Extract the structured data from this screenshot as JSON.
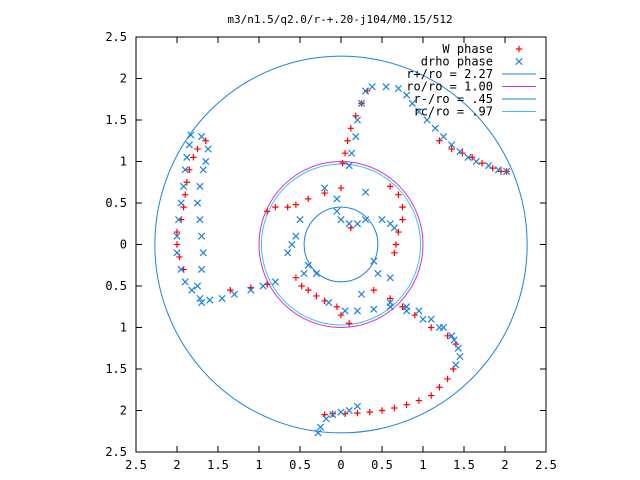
{
  "chart_data": {
    "type": "scatter",
    "title": "m3/n1.5/q2.0/r-+.20-j104/M0.15/512",
    "xlim": [
      -2.5,
      2.5
    ],
    "ylim": [
      -2.5,
      2.5
    ],
    "x_ticks": [
      -2.5,
      -2,
      -1.5,
      -1,
      -0.5,
      0,
      0.5,
      1,
      1.5,
      2,
      2.5
    ],
    "y_ticks": [
      2.5,
      2,
      1.5,
      1,
      0.5,
      0,
      -0.5,
      -1,
      -1.5,
      -2,
      -2.5
    ],
    "x_tick_labels": [
      "2.5",
      "2",
      "1.5",
      "1",
      "0.5",
      "0",
      "0.5",
      "1",
      "1.5",
      "2",
      "2.5"
    ],
    "y_tick_labels": [
      "2.5",
      "2",
      "1.5",
      "1",
      "0.5",
      "0",
      "0.5",
      "1",
      "1.5",
      "2",
      "2.5"
    ],
    "grid": false,
    "legend_position": "top-right",
    "series": [
      {
        "name": "W phase",
        "marker": "+",
        "color": "#ff0000",
        "points": [
          [
            0.02,
            0.98
          ],
          [
            0.05,
            1.1
          ],
          [
            0.08,
            1.25
          ],
          [
            0.12,
            1.4
          ],
          [
            0.18,
            1.55
          ],
          [
            0.25,
            1.7
          ],
          [
            0.32,
            1.85
          ],
          [
            0.12,
            0.2
          ],
          [
            0.6,
            0.7
          ],
          [
            0.7,
            0.6
          ],
          [
            0.75,
            0.45
          ],
          [
            0.75,
            0.3
          ],
          [
            0.7,
            0.15
          ],
          [
            0.67,
            0.0
          ],
          [
            0.65,
            -0.1
          ],
          [
            -0.9,
            0.4
          ],
          [
            -0.8,
            0.45
          ],
          [
            -0.65,
            0.45
          ],
          [
            -0.55,
            0.48
          ],
          [
            -0.4,
            0.55
          ],
          [
            -0.2,
            0.62
          ],
          [
            0.0,
            0.68
          ],
          [
            -0.55,
            -0.4
          ],
          [
            -0.48,
            -0.5
          ],
          [
            -0.4,
            -0.55
          ],
          [
            -0.3,
            -0.62
          ],
          [
            -0.2,
            -0.68
          ],
          [
            -0.05,
            -0.75
          ],
          [
            0.0,
            -0.85
          ],
          [
            0.1,
            -0.95
          ],
          [
            0.4,
            -0.55
          ],
          [
            0.6,
            -0.65
          ],
          [
            0.75,
            -0.75
          ],
          [
            0.9,
            -0.85
          ],
          [
            1.1,
            -1.0
          ],
          [
            1.3,
            -1.1
          ],
          [
            1.4,
            -1.2
          ],
          [
            -1.35,
            -0.55
          ],
          [
            -1.1,
            -0.52
          ],
          [
            -0.9,
            -0.48
          ],
          [
            1.37,
            -1.5
          ],
          [
            1.3,
            -1.62
          ],
          [
            1.2,
            -1.72
          ],
          [
            1.1,
            -1.82
          ],
          [
            0.95,
            -1.88
          ],
          [
            0.8,
            -1.93
          ],
          [
            0.65,
            -1.97
          ],
          [
            0.5,
            -2.0
          ],
          [
            0.35,
            -2.02
          ],
          [
            0.2,
            -2.03
          ],
          [
            0.05,
            -2.04
          ],
          [
            -0.1,
            -2.04
          ],
          [
            -0.2,
            -2.05
          ],
          [
            -1.92,
            -0.3
          ],
          [
            -1.97,
            -0.15
          ],
          [
            -2.0,
            0.0
          ],
          [
            -2.0,
            0.15
          ],
          [
            -1.95,
            0.3
          ],
          [
            -1.92,
            0.45
          ],
          [
            -1.9,
            0.6
          ],
          [
            -1.88,
            0.75
          ],
          [
            -1.85,
            0.9
          ],
          [
            -1.8,
            1.05
          ],
          [
            -1.75,
            1.15
          ],
          [
            -1.65,
            1.25
          ],
          [
            1.2,
            1.25
          ],
          [
            1.35,
            1.15
          ],
          [
            1.48,
            1.1
          ],
          [
            1.6,
            1.05
          ],
          [
            1.72,
            0.98
          ],
          [
            1.85,
            0.92
          ],
          [
            1.95,
            0.88
          ],
          [
            2.02,
            0.88
          ]
        ]
      },
      {
        "name": "drho phase",
        "marker": "x",
        "color": "#1c82e0",
        "points": [
          [
            0.1,
            0.95
          ],
          [
            0.13,
            1.1
          ],
          [
            0.18,
            1.3
          ],
          [
            0.2,
            1.5
          ],
          [
            0.25,
            1.7
          ],
          [
            0.3,
            1.85
          ],
          [
            0.38,
            1.9
          ],
          [
            0.55,
            1.9
          ],
          [
            0.7,
            1.88
          ],
          [
            0.8,
            1.8
          ],
          [
            0.87,
            1.7
          ],
          [
            0.95,
            1.6
          ],
          [
            1.05,
            1.5
          ],
          [
            1.15,
            1.4
          ],
          [
            1.25,
            1.3
          ],
          [
            1.35,
            1.2
          ],
          [
            1.45,
            1.12
          ],
          [
            1.55,
            1.05
          ],
          [
            1.65,
            1.0
          ],
          [
            1.8,
            0.95
          ],
          [
            1.92,
            0.9
          ],
          [
            2.02,
            0.88
          ],
          [
            -0.05,
            0.55
          ],
          [
            -0.05,
            0.4
          ],
          [
            0.0,
            0.3
          ],
          [
            0.1,
            0.25
          ],
          [
            0.2,
            0.25
          ],
          [
            0.3,
            0.3
          ],
          [
            0.5,
            0.3
          ],
          [
            0.6,
            0.25
          ],
          [
            0.65,
            0.2
          ],
          [
            -0.5,
            0.3
          ],
          [
            -0.55,
            0.1
          ],
          [
            -0.6,
            0.0
          ],
          [
            -0.65,
            -0.1
          ],
          [
            -0.4,
            -0.25
          ],
          [
            -0.45,
            -0.35
          ],
          [
            -0.3,
            -0.35
          ],
          [
            0.4,
            -0.2
          ],
          [
            0.45,
            -0.35
          ],
          [
            0.6,
            -0.4
          ],
          [
            -0.15,
            -0.7
          ],
          [
            0.05,
            -0.8
          ],
          [
            0.2,
            -0.8
          ],
          [
            0.4,
            -0.78
          ],
          [
            0.6,
            -0.75
          ],
          [
            0.8,
            -0.8
          ],
          [
            1.0,
            -0.9
          ],
          [
            1.2,
            -1.0
          ],
          [
            1.35,
            -1.1
          ],
          [
            1.43,
            -1.25
          ],
          [
            1.45,
            -1.35
          ],
          [
            1.4,
            -1.45
          ],
          [
            0.6,
            -0.7
          ],
          [
            0.8,
            -0.75
          ],
          [
            0.95,
            -0.8
          ],
          [
            1.1,
            -0.9
          ],
          [
            1.25,
            -1.0
          ],
          [
            1.38,
            -1.15
          ],
          [
            0.2,
            -1.95
          ],
          [
            0.1,
            -2.0
          ],
          [
            0.0,
            -2.02
          ],
          [
            -0.1,
            -2.05
          ],
          [
            -0.18,
            -2.1
          ],
          [
            -0.25,
            -2.2
          ],
          [
            -0.28,
            -2.27
          ],
          [
            0.25,
            -0.6
          ],
          [
            -0.2,
            0.68
          ],
          [
            0.3,
            0.63
          ],
          [
            -1.7,
            -0.7
          ],
          [
            -1.6,
            -0.67
          ],
          [
            -1.45,
            -0.65
          ],
          [
            -1.3,
            -0.6
          ],
          [
            -1.1,
            -0.55
          ],
          [
            -0.95,
            -0.5
          ],
          [
            -0.8,
            -0.45
          ],
          [
            -1.72,
            -0.65
          ],
          [
            -1.82,
            -0.55
          ],
          [
            -1.9,
            -0.45
          ],
          [
            -1.95,
            -0.3
          ],
          [
            -2.0,
            -0.1
          ],
          [
            -2.0,
            0.1
          ],
          [
            -1.98,
            0.3
          ],
          [
            -1.95,
            0.5
          ],
          [
            -1.92,
            0.7
          ],
          [
            -1.9,
            0.9
          ],
          [
            -1.88,
            1.05
          ],
          [
            -1.85,
            1.2
          ],
          [
            -1.83,
            1.32
          ],
          [
            -1.75,
            -0.5
          ],
          [
            -1.7,
            -0.3
          ],
          [
            -1.68,
            -0.1
          ],
          [
            -1.7,
            0.1
          ],
          [
            -1.72,
            0.3
          ],
          [
            -1.75,
            0.5
          ],
          [
            -1.72,
            0.7
          ],
          [
            -1.68,
            0.9
          ],
          [
            -1.65,
            1.0
          ],
          [
            -1.62,
            1.15
          ],
          [
            -1.7,
            1.3
          ]
        ]
      }
    ],
    "circles": [
      {
        "name": "r+/ro = 2.27",
        "label_prefix": "r+/ro",
        "label_value": "2.27",
        "r": 2.27,
        "color": "#1c82e0"
      },
      {
        "name": "ro/ro = 1.00",
        "label_prefix": "ro/ro",
        "label_value": "1.00",
        "r": 1.0,
        "color": "#cc33cc"
      },
      {
        "name": "r-/ro = .45",
        "label_prefix": "r-/ro",
        "label_value": ".45",
        "r": 0.45,
        "color": "#1c82e0"
      },
      {
        "name": "rc/ro = .97",
        "label_prefix": "rc/ro",
        "label_value": ".97",
        "r": 0.97,
        "color": "#40c0f0"
      }
    ],
    "legend_entries": [
      "W phase",
      "drho phase",
      "r+/ro = 2.27",
      "ro/ro = 1.00",
      "r-/ro = .45",
      "rc/ro = .97"
    ]
  }
}
